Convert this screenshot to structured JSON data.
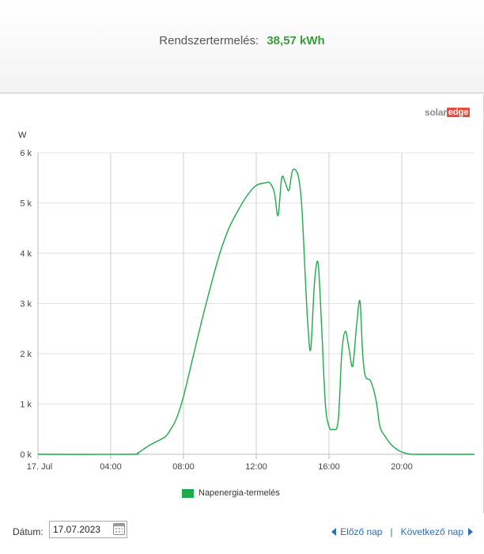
{
  "summary": {
    "label": "Rendszertermelés:",
    "value": "38,57 kWh",
    "value_color": "#3a9c3a"
  },
  "logo": {
    "part1": "solar",
    "part2": "edge",
    "accent": "#e84c3d"
  },
  "footer": {
    "date_label": "Dátum:",
    "date_value": "17.07.2023",
    "prev_label": "Előző nap",
    "sep": "|",
    "next_label": "Következő nap"
  },
  "chart_data": {
    "type": "area",
    "title": "",
    "ylabel": "W",
    "ylim": [
      0,
      6000
    ],
    "yticks": [
      0,
      1000,
      2000,
      3000,
      4000,
      5000,
      6000
    ],
    "ytick_labels": [
      "0 k",
      "1 k",
      "2 k",
      "3 k",
      "4 k",
      "5 k",
      "6 k"
    ],
    "xlim": [
      0,
      24
    ],
    "xticks": [
      0,
      4,
      8,
      12,
      16,
      20
    ],
    "xtick_labels": [
      "17. Jul",
      "04:00",
      "08:00",
      "12:00",
      "16:00",
      "20:00"
    ],
    "grid": true,
    "legend_position": "bottom-center",
    "series": [
      {
        "name": "Napenergia-termelés",
        "color": "#1eab4b",
        "x": [
          0,
          5.0,
          5.5,
          6.0,
          6.5,
          7.0,
          7.3,
          7.6,
          8.0,
          8.5,
          9.0,
          9.5,
          10.0,
          10.5,
          11.0,
          11.5,
          12.0,
          12.5,
          12.75,
          13.0,
          13.2,
          13.4,
          13.6,
          13.8,
          14.0,
          14.3,
          14.5,
          14.7,
          14.85,
          15.0,
          15.2,
          15.4,
          15.6,
          15.8,
          16.0,
          16.2,
          16.5,
          16.7,
          16.9,
          17.1,
          17.3,
          17.5,
          17.7,
          17.85,
          18.0,
          18.3,
          18.6,
          18.8,
          19.1,
          19.4,
          19.8,
          20.2,
          20.5,
          20.8,
          24
        ],
        "y": [
          0,
          0,
          30,
          150,
          250,
          350,
          500,
          700,
          1150,
          1900,
          2650,
          3350,
          4000,
          4500,
          4850,
          5150,
          5350,
          5400,
          5400,
          5200,
          4750,
          5500,
          5400,
          5250,
          5650,
          5550,
          4950,
          3500,
          2500,
          2100,
          3400,
          3800,
          2500,
          1000,
          550,
          500,
          650,
          2000,
          2450,
          2100,
          1750,
          2500,
          3050,
          2000,
          1550,
          1450,
          1050,
          550,
          350,
          200,
          80,
          20,
          0,
          0,
          0
        ]
      }
    ]
  }
}
